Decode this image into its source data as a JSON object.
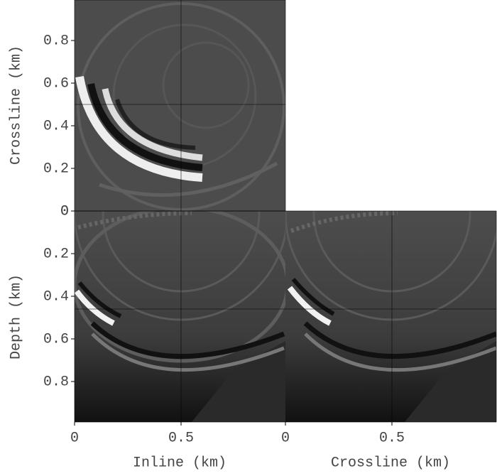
{
  "chart_data": {
    "type": "cube",
    "inline": {
      "label": "Inline (km)",
      "lim": [
        0,
        0.99
      ],
      "ticks": [
        0,
        0.5
      ],
      "slice": 0.5
    },
    "crossline": {
      "label": "Crossline (km)",
      "lim": [
        0,
        0.99
      ],
      "vticks": [
        0,
        0.2,
        0.4,
        0.6,
        0.8
      ],
      "hticks": [
        0,
        0.5
      ],
      "slice": 0.5
    },
    "depth": {
      "label": "Depth (km)",
      "lim": [
        0,
        0.99
      ],
      "ticks": [
        0,
        0.2,
        0.4,
        0.6,
        0.8
      ],
      "slice": 0.46
    }
  }
}
